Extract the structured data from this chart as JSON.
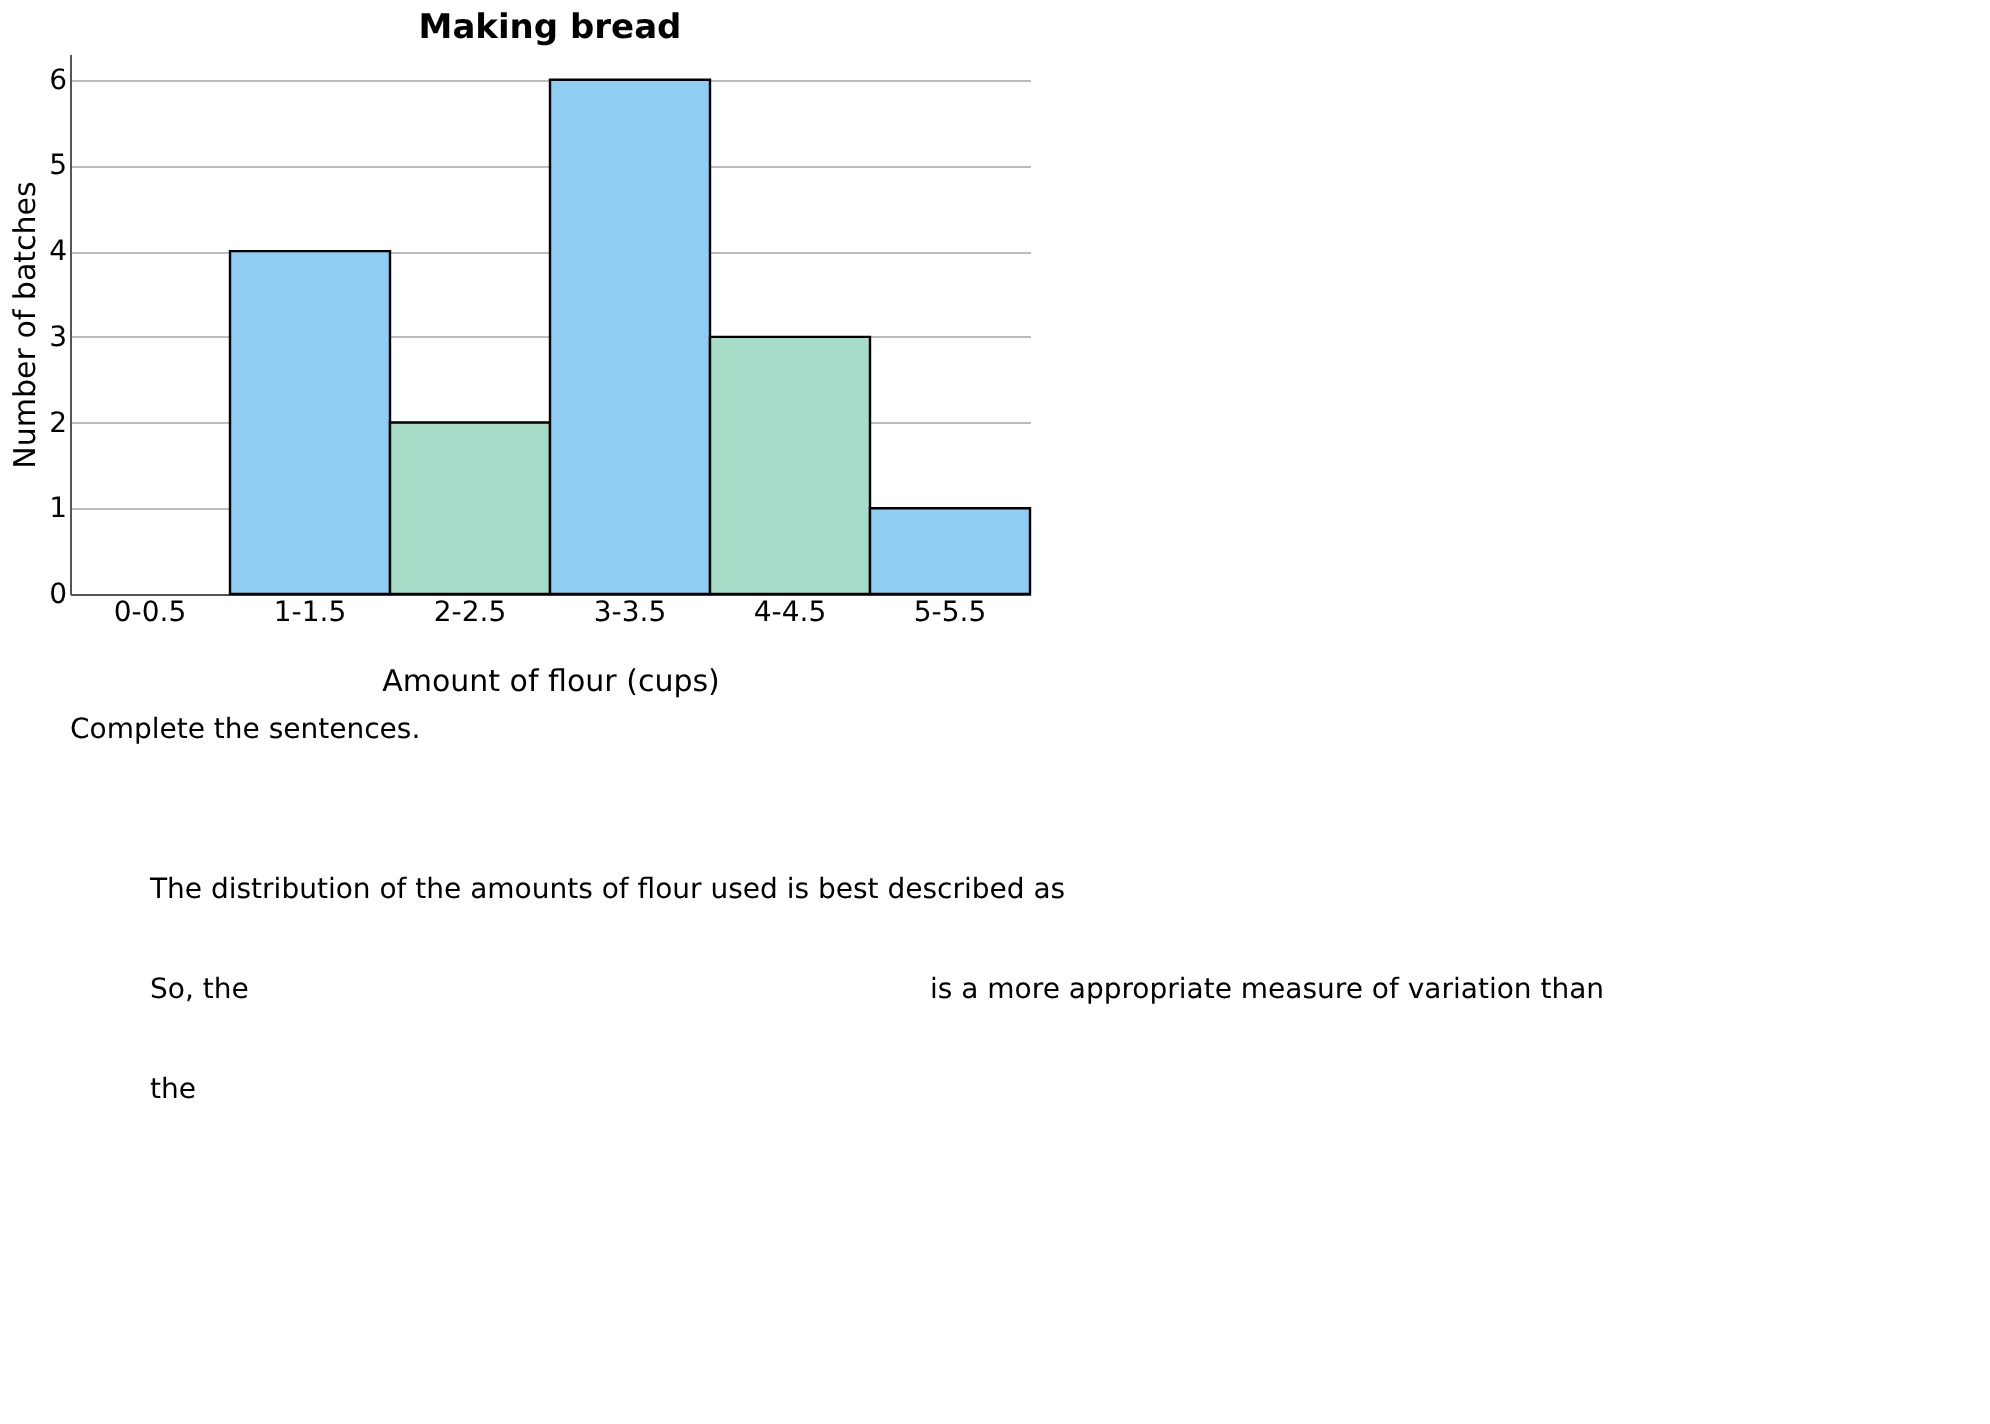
{
  "chart_data": {
    "type": "bar",
    "title": "Making bread",
    "xlabel": "Amount of flour (cups)",
    "ylabel": "Number of batches",
    "categories": [
      "0-0.5",
      "1-1.5",
      "2-2.5",
      "3-3.5",
      "4-4.5",
      "5-5.5"
    ],
    "values": [
      0,
      4,
      2,
      6,
      3,
      1
    ],
    "colors": [
      "#a6dcc8",
      "#8fcdf2",
      "#a6dcc8",
      "#8fcdf2",
      "#a6dcc8",
      "#8fcdf2"
    ],
    "ylim": [
      0,
      6.3
    ],
    "yticks": [
      0,
      1,
      2,
      3,
      4,
      5,
      6
    ],
    "grid": "y",
    "annotations": [
      "Complete the sentences.",
      "The distribution of the amounts of flour used is best described as",
      "So, the",
      "is a more appropriate measure of variation than",
      "the"
    ]
  }
}
